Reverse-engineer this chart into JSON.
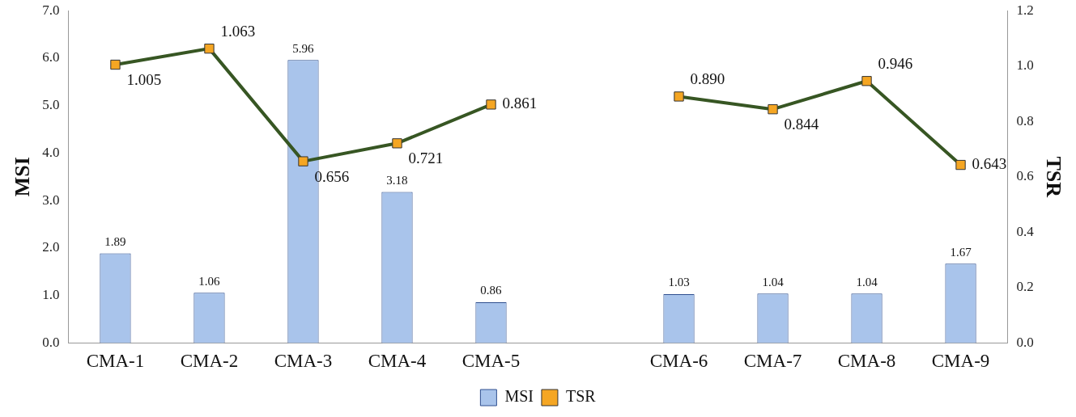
{
  "chart_data": {
    "type": "bar",
    "categories": [
      "CMA-1",
      "CMA-2",
      "CMA-3",
      "CMA-4",
      "CMA-5",
      null,
      "CMA-6",
      "CMA-7",
      "CMA-8",
      "CMA-9"
    ],
    "ylabel": "MSI",
    "y2label": "TSR",
    "ylim": [
      0,
      7
    ],
    "yticks": [
      {
        "value": 0,
        "label": "0.0"
      },
      {
        "value": 1,
        "label": "1.0"
      },
      {
        "value": 2,
        "label": "2.0"
      },
      {
        "value": 3,
        "label": "3.0"
      },
      {
        "value": 4,
        "label": "4.0"
      },
      {
        "value": 5,
        "label": "5.0"
      },
      {
        "value": 6,
        "label": "6.0"
      },
      {
        "value": 7,
        "label": "7.0"
      }
    ],
    "y2lim": [
      0,
      1.2
    ],
    "y2ticks": [
      {
        "value": 0,
        "label": "0.0"
      },
      {
        "value": 0.2,
        "label": "0.2"
      },
      {
        "value": 0.4,
        "label": "0.4"
      },
      {
        "value": 0.6,
        "label": "0.6"
      },
      {
        "value": 0.8,
        "label": "0.8"
      },
      {
        "value": 1,
        "label": "1.0"
      },
      {
        "value": 1.2,
        "label": "1.2"
      }
    ],
    "series": [
      {
        "name": "MSI",
        "color": "#a9c4eb",
        "values": [
          1.89,
          1.06,
          5.96,
          3.18,
          0.86,
          null,
          1.03,
          1.04,
          1.04,
          1.67
        ],
        "value_labels": [
          "1.89",
          "1.06",
          "5.96",
          "3.18",
          "0.86",
          null,
          "1.03",
          "1.04",
          "1.04",
          "1.67"
        ]
      },
      {
        "name": "TSR",
        "type": "line",
        "axis": "y2",
        "color": "#375623",
        "colors": [
          "#f5a623",
          "#f5a623",
          "#f5a623",
          "#f5a623",
          "#f5a623",
          null,
          "#f5a623",
          "#f5a623",
          "#f5a623",
          "#f5a623"
        ],
        "marker": "square",
        "values": [
          1.005,
          1.063,
          0.656,
          0.721,
          0.861,
          null,
          0.89,
          0.844,
          0.946,
          0.643
        ],
        "value_labels": [
          "1.005",
          "1.063",
          "0.656",
          "0.721",
          "0.861",
          null,
          "0.890",
          "0.844",
          "0.946",
          "0.643"
        ]
      }
    ],
    "grid": false,
    "legend": "bottom"
  }
}
